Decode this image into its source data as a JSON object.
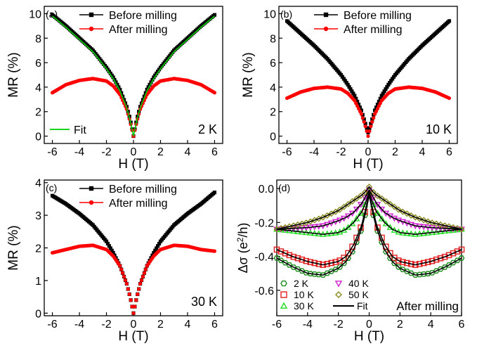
{
  "chart_data": [
    {
      "type": "line",
      "panel_label": "(a)",
      "xlabel": "H (T)",
      "ylabel": "MR (%)",
      "xlim": [
        -6.6,
        6.6
      ],
      "ylim": [
        -0.6,
        10.6
      ],
      "xticks": [
        -6,
        -4,
        -2,
        0,
        2,
        4,
        6
      ],
      "yticks": [
        0,
        2,
        4,
        6,
        8,
        10
      ],
      "annotation": "2 K",
      "fit_label": "Fit",
      "legend_position": "top-center",
      "series": [
        {
          "name": "Before milling",
          "color": "#000000",
          "marker": "square",
          "x": [
            -6,
            -5,
            -4,
            -3,
            -2,
            -1.5,
            -1,
            -0.5,
            -0.25,
            0,
            0.25,
            0.5,
            1,
            1.5,
            2,
            3,
            4,
            5,
            6
          ],
          "y": [
            9.9,
            9.0,
            8.0,
            7.0,
            5.6,
            4.8,
            3.8,
            2.4,
            1.4,
            0,
            1.4,
            2.4,
            3.8,
            4.8,
            5.6,
            7.0,
            8.0,
            9.0,
            9.9
          ]
        },
        {
          "name": "After milling",
          "color": "#ff0000",
          "marker": "circle",
          "x": [
            -6,
            -5,
            -4,
            -3,
            -2,
            -1.5,
            -1,
            -0.5,
            -0.25,
            0,
            0.25,
            0.5,
            1,
            1.5,
            2,
            3,
            4,
            5,
            6
          ],
          "y": [
            3.55,
            4.2,
            4.55,
            4.7,
            4.5,
            4.1,
            3.4,
            2.2,
            1.2,
            0,
            1.2,
            2.2,
            3.4,
            4.1,
            4.5,
            4.7,
            4.55,
            4.2,
            3.55
          ]
        },
        {
          "name": "Fit",
          "color": "#00cc00",
          "marker": "none",
          "x": [
            -6,
            -5,
            -4,
            -3,
            -2,
            -1.5,
            -1,
            -0.5,
            -0.25,
            0,
            0.25,
            0.5,
            1,
            1.5,
            2,
            3,
            4,
            5,
            6
          ],
          "y": [
            9.8,
            8.9,
            7.9,
            6.9,
            5.5,
            4.7,
            3.7,
            2.3,
            1.3,
            0,
            1.3,
            2.3,
            3.7,
            4.7,
            5.5,
            6.9,
            7.9,
            8.9,
            9.8
          ]
        }
      ]
    },
    {
      "type": "line",
      "panel_label": "(b)",
      "xlabel": "H (T)",
      "ylabel": "MR (%)",
      "xlim": [
        -6.6,
        6.6
      ],
      "ylim": [
        -0.6,
        10.6
      ],
      "xticks": [
        -6,
        -4,
        -2,
        0,
        2,
        4,
        6
      ],
      "yticks": [
        0,
        2,
        4,
        6,
        8,
        10
      ],
      "annotation": "10 K",
      "legend_position": "top-center",
      "series": [
        {
          "name": "Before milling",
          "color": "#000000",
          "marker": "square",
          "x": [
            -6,
            -5,
            -4,
            -3,
            -2,
            -1.5,
            -1,
            -0.5,
            -0.25,
            0,
            0.25,
            0.5,
            1,
            1.5,
            2,
            3,
            4,
            5,
            6
          ],
          "y": [
            9.4,
            8.4,
            7.4,
            6.3,
            5.0,
            4.2,
            3.3,
            2.1,
            1.2,
            0.3,
            1.2,
            2.1,
            3.3,
            4.2,
            5.0,
            6.3,
            7.4,
            8.4,
            9.4
          ]
        },
        {
          "name": "After milling",
          "color": "#ff0000",
          "marker": "circle",
          "x": [
            -6,
            -5,
            -4,
            -3,
            -2,
            -1.5,
            -1,
            -0.5,
            -0.25,
            0,
            0.25,
            0.5,
            1,
            1.5,
            2,
            3,
            4,
            5,
            6
          ],
          "y": [
            3.1,
            3.6,
            3.9,
            4.0,
            3.85,
            3.5,
            2.9,
            1.8,
            1.0,
            0,
            1.0,
            1.8,
            2.9,
            3.5,
            3.85,
            4.0,
            3.9,
            3.6,
            3.1
          ]
        }
      ]
    },
    {
      "type": "line",
      "panel_label": "(c)",
      "xlabel": "H (T)",
      "ylabel": "MR (%)",
      "xlim": [
        -6.6,
        6.6
      ],
      "ylim": [
        -0.08,
        4.08
      ],
      "xticks": [
        -6,
        -4,
        -2,
        0,
        2,
        4,
        6
      ],
      "yticks": [
        0,
        1,
        2,
        3,
        4
      ],
      "annotation": "30 K",
      "legend_position": "top-center",
      "series": [
        {
          "name": "Before milling",
          "color": "#000000",
          "marker": "square",
          "x": [
            -6,
            -5,
            -4,
            -3,
            -2,
            -1.5,
            -1,
            -0.5,
            -0.25,
            0,
            0.25,
            0.5,
            1,
            1.5,
            2,
            3,
            4,
            5,
            6
          ],
          "y": [
            3.6,
            3.35,
            3.05,
            2.7,
            2.2,
            1.85,
            1.45,
            0.9,
            0.5,
            0,
            0.5,
            0.9,
            1.45,
            1.85,
            2.2,
            2.7,
            3.05,
            3.35,
            3.7
          ]
        },
        {
          "name": "After milling",
          "color": "#ff0000",
          "marker": "circle",
          "x": [
            -6,
            -5,
            -4,
            -3,
            -2,
            -1.5,
            -1,
            -0.5,
            -0.25,
            0,
            0.25,
            0.5,
            1,
            1.5,
            2,
            3,
            4,
            5,
            6
          ],
          "y": [
            1.85,
            1.95,
            2.05,
            2.08,
            1.95,
            1.75,
            1.45,
            0.9,
            0.5,
            0,
            0.5,
            0.9,
            1.45,
            1.75,
            1.95,
            2.08,
            2.05,
            1.95,
            1.9
          ]
        }
      ]
    },
    {
      "type": "line",
      "panel_label": "(d)",
      "xlabel": "H (T)",
      "ylabel_main": "Δσ (e",
      "ylabel_sup": "2",
      "ylabel_end": "/h)",
      "xlim": [
        -6,
        6
      ],
      "ylim": [
        -0.75,
        0.05
      ],
      "xticks": [
        -6,
        -4,
        -2,
        0,
        2,
        4,
        6
      ],
      "yticks": [
        0.0,
        -0.2,
        -0.4,
        -0.6
      ],
      "ytick_labels": [
        "0.0",
        "-0.2",
        "-0.4",
        "-0.6"
      ],
      "annotation": "After milling",
      "legend_position": "bottom-left",
      "fit_label": "Fit",
      "series": [
        {
          "name": "2 K",
          "color": "#1a8a1a",
          "marker": "hexagon",
          "x": [
            -6,
            -5,
            -4,
            -3,
            -2,
            -1.5,
            -1,
            -0.5,
            -0.25,
            0,
            0.25,
            0.5,
            1,
            1.5,
            2,
            3,
            4,
            5,
            6
          ],
          "y": [
            -0.41,
            -0.46,
            -0.5,
            -0.51,
            -0.47,
            -0.43,
            -0.36,
            -0.24,
            -0.15,
            -0.04,
            -0.15,
            -0.24,
            -0.36,
            -0.43,
            -0.47,
            -0.51,
            -0.5,
            -0.46,
            -0.41
          ]
        },
        {
          "name": "10 K",
          "color": "#e02020",
          "marker": "square",
          "x": [
            -6,
            -5,
            -4,
            -3,
            -2,
            -1.5,
            -1,
            -0.5,
            -0.25,
            0,
            0.25,
            0.5,
            1,
            1.5,
            2,
            3,
            4,
            5,
            6
          ],
          "y": [
            -0.36,
            -0.4,
            -0.43,
            -0.45,
            -0.43,
            -0.4,
            -0.33,
            -0.22,
            -0.13,
            -0.03,
            -0.13,
            -0.22,
            -0.33,
            -0.4,
            -0.43,
            -0.45,
            -0.43,
            -0.4,
            -0.36
          ]
        },
        {
          "name": "30 K",
          "color": "#22dd22",
          "marker": "triangle-up",
          "x": [
            -6,
            -5,
            -4,
            -3,
            -2,
            -1.5,
            -1,
            -0.5,
            -0.25,
            0,
            0.25,
            0.5,
            1,
            1.5,
            2,
            3,
            4,
            5,
            6
          ],
          "y": [
            -0.24,
            -0.25,
            -0.26,
            -0.27,
            -0.26,
            -0.24,
            -0.2,
            -0.14,
            -0.09,
            -0.02,
            -0.09,
            -0.14,
            -0.2,
            -0.24,
            -0.26,
            -0.27,
            -0.26,
            -0.25,
            -0.24
          ]
        },
        {
          "name": "40 K",
          "color": "#d020d0",
          "marker": "triangle-down",
          "x": [
            -6,
            -5,
            -4,
            -3,
            -2,
            -1.5,
            -1,
            -0.5,
            -0.25,
            0,
            0.25,
            0.5,
            1,
            1.5,
            2,
            3,
            4,
            5,
            6
          ],
          "y": [
            -0.24,
            -0.235,
            -0.23,
            -0.22,
            -0.19,
            -0.17,
            -0.14,
            -0.09,
            -0.05,
            -0.01,
            -0.05,
            -0.09,
            -0.14,
            -0.17,
            -0.19,
            -0.22,
            -0.23,
            -0.235,
            -0.24
          ]
        },
        {
          "name": "50 K",
          "color": "#8a8a20",
          "marker": "diamond",
          "x": [
            -6,
            -5,
            -4,
            -3,
            -2,
            -1.5,
            -1,
            -0.5,
            -0.25,
            0,
            0.25,
            0.5,
            1,
            1.5,
            2,
            3,
            4,
            5,
            6
          ],
          "y": [
            -0.24,
            -0.22,
            -0.2,
            -0.17,
            -0.13,
            -0.1,
            -0.07,
            -0.04,
            -0.02,
            0.01,
            -0.02,
            -0.04,
            -0.07,
            -0.1,
            -0.13,
            -0.17,
            -0.2,
            -0.22,
            -0.24
          ]
        }
      ]
    }
  ]
}
